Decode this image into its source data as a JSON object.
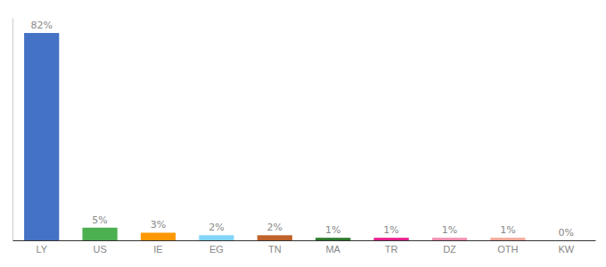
{
  "chart_data": {
    "type": "bar",
    "categories": [
      "LY",
      "US",
      "IE",
      "EG",
      "TN",
      "MA",
      "TR",
      "DZ",
      "OTH",
      "KW"
    ],
    "values": [
      82,
      5,
      3,
      2,
      2,
      1,
      1,
      1,
      1,
      0
    ],
    "value_labels": [
      "82%",
      "5%",
      "3%",
      "2%",
      "2%",
      "1%",
      "1%",
      "1%",
      "1%",
      "0%"
    ],
    "colors": [
      "#4472c4",
      "#4caf50",
      "#ff9800",
      "#81d4fa",
      "#c0622a",
      "#2d7a2d",
      "#e91e8c",
      "#f48fb1",
      "#f4a99a",
      "#bdbdbd"
    ],
    "ylim": [
      0,
      88
    ],
    "data_labels": true,
    "tick_labels": "x",
    "grid": false
  }
}
